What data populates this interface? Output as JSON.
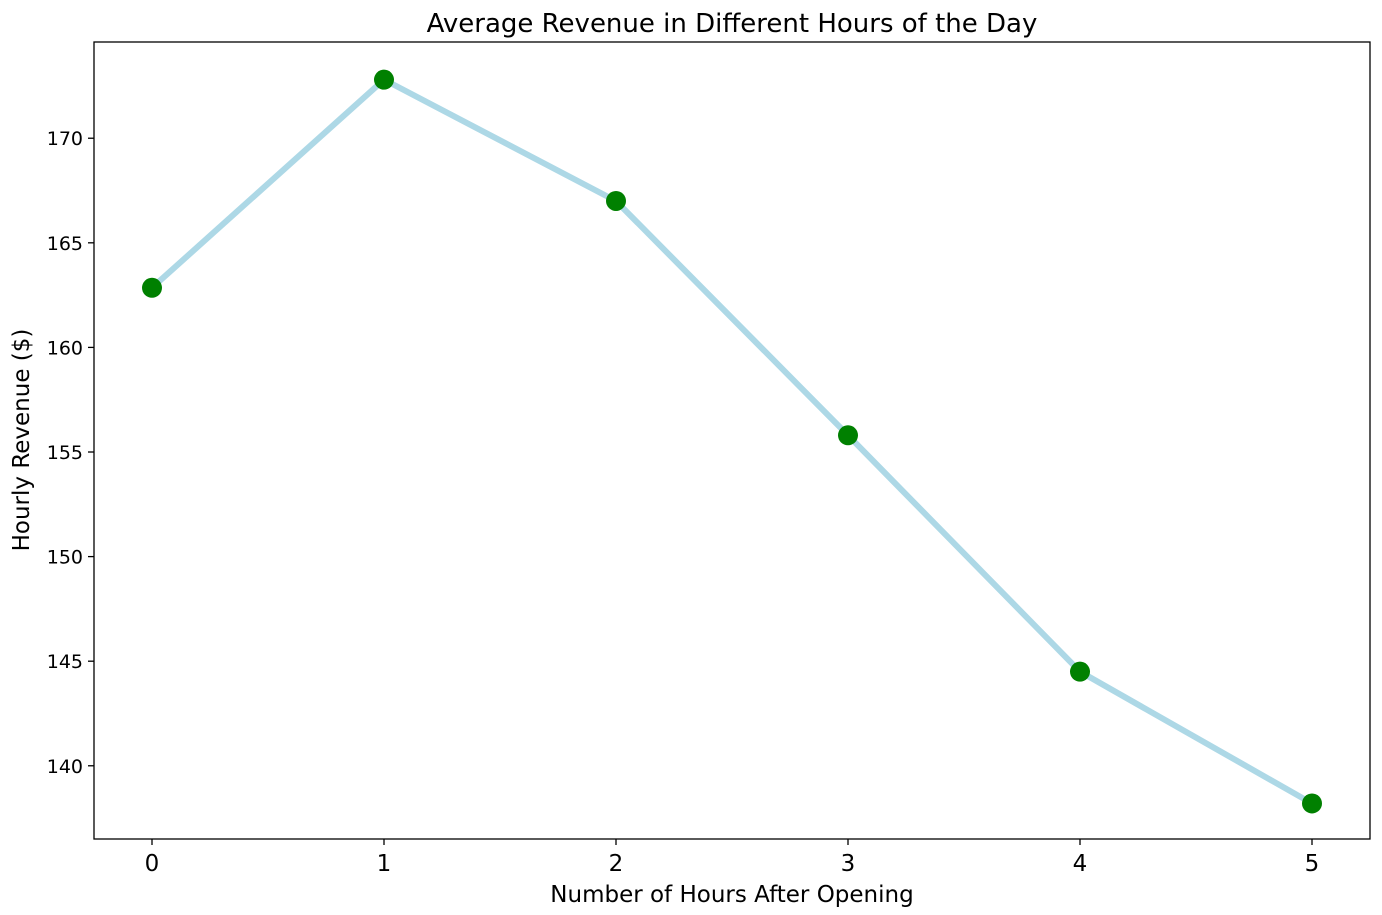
{
  "chart_data": {
    "type": "line",
    "title": "Average Revenue in Different Hours of the Day",
    "xlabel": "Number of Hours After Opening",
    "ylabel": "Hourly Revenue ($)",
    "x": [
      0,
      1,
      2,
      3,
      4,
      5
    ],
    "xticks": [
      "0",
      "1",
      "2",
      "3",
      "4",
      "5"
    ],
    "yticks": [
      140,
      145,
      150,
      155,
      160,
      165,
      170
    ],
    "xlim": [
      -0.25,
      5.25
    ],
    "ylim": [
      136.5,
      174.6
    ],
    "grid": false,
    "series": [
      {
        "values": [
          162.85,
          172.8,
          167.0,
          155.8,
          144.5,
          138.2
        ],
        "line_color": "#add8e6",
        "marker_color": "#008000",
        "marker": "circle"
      }
    ]
  }
}
